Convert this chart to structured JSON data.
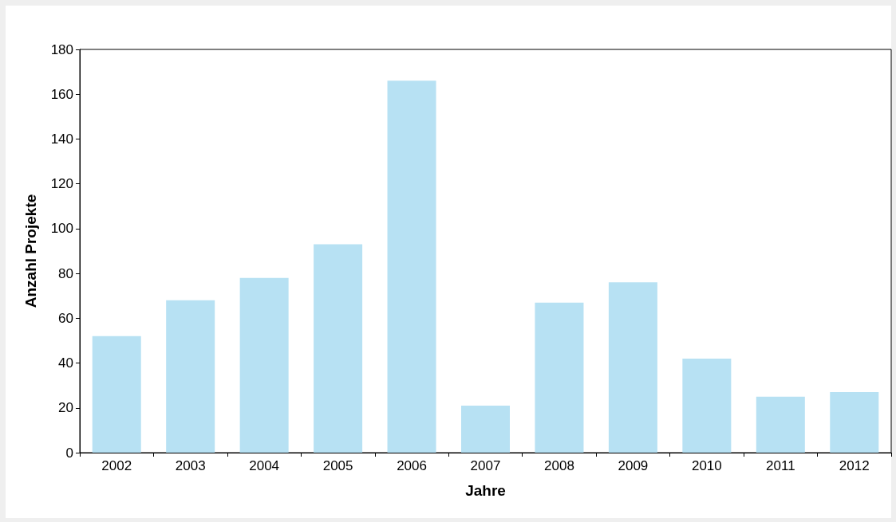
{
  "chart_data": {
    "type": "bar",
    "xlabel": "Jahre",
    "ylabel": "Anzahl Projekte",
    "categories": [
      "2002",
      "2003",
      "2004",
      "2005",
      "2006",
      "2007",
      "2008",
      "2009",
      "2010",
      "2011",
      "2012"
    ],
    "values": [
      52,
      68,
      78,
      93,
      166,
      21,
      67,
      76,
      42,
      25,
      27
    ],
    "color": "#b7e1f3",
    "ylim": [
      0,
      180
    ],
    "yticks": [
      0,
      20,
      40,
      60,
      80,
      100,
      120,
      140,
      160,
      180
    ],
    "grid": false
  }
}
